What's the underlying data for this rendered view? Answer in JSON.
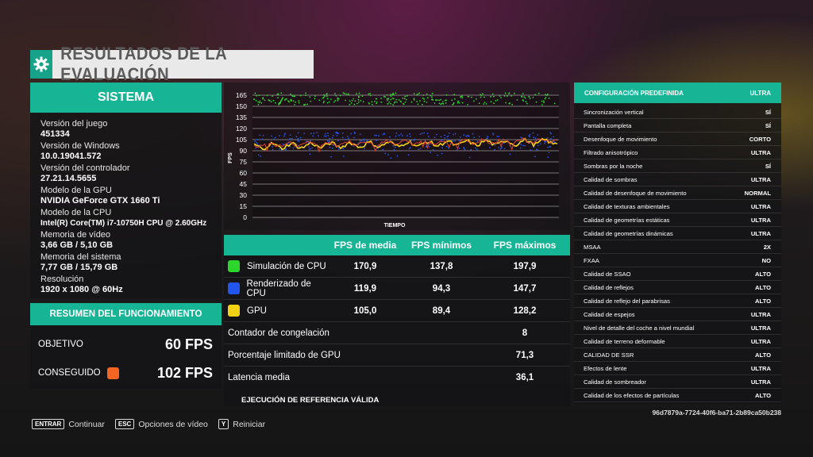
{
  "title": "RESULTADOS DE LA EVALUACIÓN",
  "colors": {
    "accent": "#16b595",
    "green": "#2dd62d",
    "blue": "#2255ee",
    "yellow": "#f3d214",
    "orange": "#f26522"
  },
  "system": {
    "header": "SISTEMA",
    "items": [
      {
        "label": "Versión del juego",
        "value": "451334"
      },
      {
        "label": "Versión de Windows",
        "value": "10.0.19041.572"
      },
      {
        "label": "Versión del controlador",
        "value": "27.21.14.5655"
      },
      {
        "label": "Modelo de la GPU",
        "value": "NVIDIA GeForce GTX 1660 Ti"
      },
      {
        "label": "Modelo de la CPU",
        "value": "Intel(R) Core(TM) i7-10750H CPU @ 2.60GHz"
      },
      {
        "label": "Memoria de vídeo",
        "value": "3,66 GB / 5,10 GB"
      },
      {
        "label": "Memoria del sistema",
        "value": "7,77 GB / 15,79 GB"
      },
      {
        "label": "Resolución",
        "value": "1920 x 1080 @ 60Hz"
      }
    ]
  },
  "summary": {
    "header": "RESUMEN DEL FUNCIONAMIENTO",
    "target_label": "OBJETIVO",
    "target_value": "60 FPS",
    "achieved_label": "CONSEGUIDO",
    "achieved_value": "102 FPS"
  },
  "chart_data": {
    "type": "line",
    "xlabel": "TIEMPO",
    "ylabel": "FPS",
    "y_ticks": [
      0,
      15,
      30,
      45,
      60,
      75,
      90,
      105,
      120,
      135,
      150,
      165
    ],
    "ylim": [
      0,
      165
    ],
    "series": [
      {
        "color": "#2dd62d",
        "level": 160,
        "spread": 8
      },
      {
        "color": "#2255ee",
        "level": 103,
        "spread": 12
      },
      {
        "color": "#f3d214",
        "level": 96,
        "spread": 5
      },
      {
        "color": "#e04030",
        "level": 98,
        "spread": 4
      }
    ]
  },
  "fps_table": {
    "headers": [
      "",
      "FPS de media",
      "FPS mínimos",
      "FPS máximos"
    ],
    "rows": [
      {
        "name": "Simulación de CPU",
        "color": "#2dd62d",
        "avg": "170,9",
        "min": "137,8",
        "max": "197,9"
      },
      {
        "name": "Renderizado de CPU",
        "color": "#2255ee",
        "avg": "119,9",
        "min": "94,3",
        "max": "147,7"
      },
      {
        "name": "GPU",
        "color": "#f3d214",
        "avg": "105,0",
        "min": "89,4",
        "max": "128,2"
      }
    ],
    "extra": [
      {
        "label": "Contador de congelación",
        "value": "8"
      },
      {
        "label": "Porcentaje limitado de GPU",
        "value": "71,3"
      },
      {
        "label": "Latencia media",
        "value": "36,1"
      }
    ],
    "valid": "EJECUCIÓN DE REFERENCIA VÁLIDA"
  },
  "config": {
    "header_label": "CONFIGURACIÓN PREDEFINIDA",
    "header_value": "ULTRA",
    "rows": [
      {
        "label": "Sincronización vertical",
        "value": "SÍ"
      },
      {
        "label": "Pantalla completa",
        "value": "SÍ"
      },
      {
        "label": "Desenfoque de movimiento",
        "value": "CORTO"
      },
      {
        "label": "Filtrado anisotrópico",
        "value": "ULTRA"
      },
      {
        "label": "Sombras por la noche",
        "value": "SÍ"
      },
      {
        "label": "Calidad de sombras",
        "value": "ULTRA"
      },
      {
        "label": "Calidad de desenfoque de movimiento",
        "value": "NORMAL"
      },
      {
        "label": "Calidad de texturas ambientales",
        "value": "ULTRA"
      },
      {
        "label": "Calidad de geometrías estáticas",
        "value": "ULTRA"
      },
      {
        "label": "Calidad de geometrías dinámicas",
        "value": "ULTRA"
      },
      {
        "label": "MSAA",
        "value": "2X"
      },
      {
        "label": "FXAA",
        "value": "NO"
      },
      {
        "label": "Calidad de SSAO",
        "value": "ALTO"
      },
      {
        "label": "Calidad de reflejos",
        "value": "ALTO"
      },
      {
        "label": "Calidad de reflejo del parabrisas",
        "value": "ALTO"
      },
      {
        "label": "Calidad de espejos",
        "value": "ULTRA"
      },
      {
        "label": "Nivel de detalle del coche a nivel mundial",
        "value": "ULTRA"
      },
      {
        "label": "Calidad de terreno deformable",
        "value": "ULTRA"
      },
      {
        "label": "CALIDAD DE SSR",
        "value": "ALTO"
      },
      {
        "label": "Efectos de lente",
        "value": "ULTRA"
      },
      {
        "label": "Calidad de sombreador",
        "value": "ULTRA"
      },
      {
        "label": "Calidad de los efectos de partículas",
        "value": "ALTO"
      }
    ],
    "hash": "96d7879a-7724-40f6-ba71-2b89ca50b238"
  },
  "footer": [
    {
      "key": "ENTRAR",
      "action": "Continuar"
    },
    {
      "key": "ESC",
      "action": "Opciones de vídeo"
    },
    {
      "key": "Y",
      "action": "Reiniciar"
    }
  ]
}
